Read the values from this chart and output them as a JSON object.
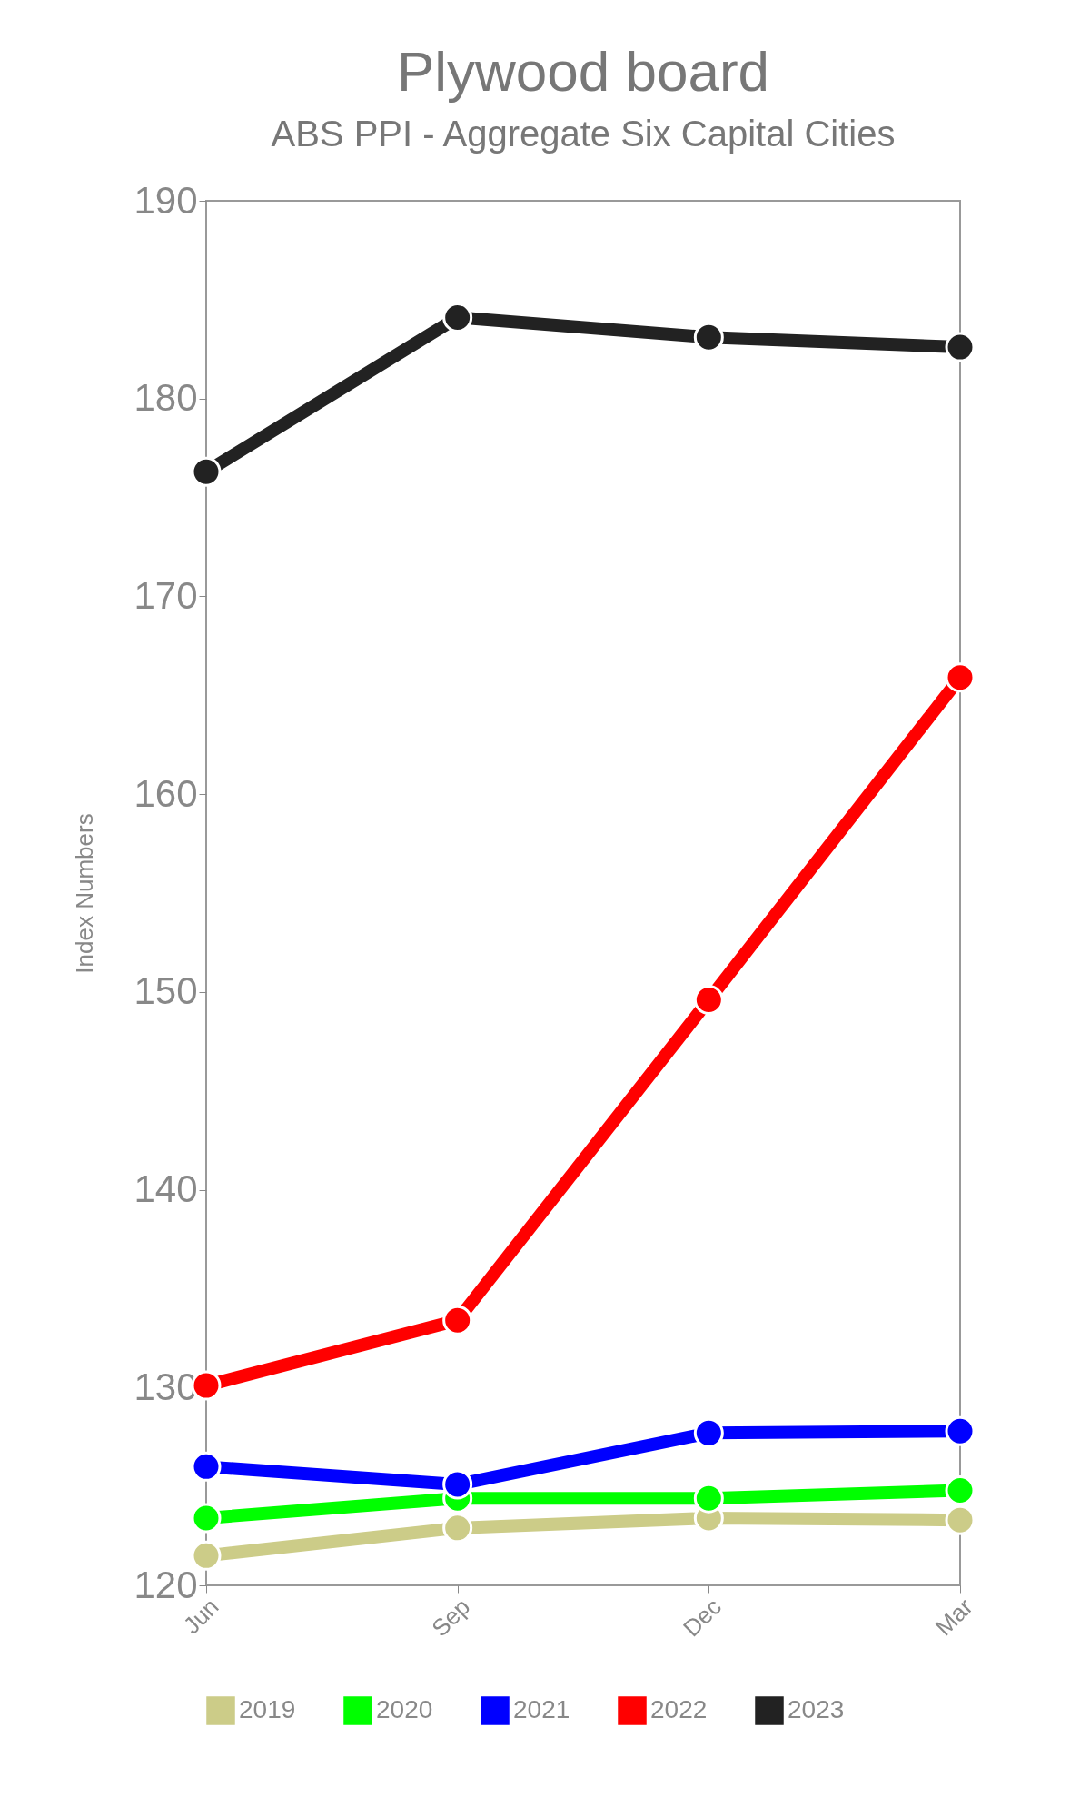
{
  "chart_data": {
    "type": "line",
    "title": "Plywood board",
    "subtitle": "ABS PPI - Aggregate Six Capital Cities",
    "ylabel": "Index Numbers",
    "categories": [
      "Jun",
      "Sep",
      "Dec",
      "Mar"
    ],
    "series": [
      {
        "name": "2019",
        "color": "#cccc88",
        "values": [
          121.5,
          122.9,
          123.4,
          123.3
        ]
      },
      {
        "name": "2020",
        "color": "#00ff00",
        "values": [
          123.4,
          124.4,
          124.4,
          124.8
        ]
      },
      {
        "name": "2021",
        "color": "#0000ff",
        "values": [
          126.0,
          125.1,
          127.7,
          127.8
        ]
      },
      {
        "name": "2022",
        "color": "#ff0000",
        "values": [
          130.1,
          133.4,
          149.6,
          165.9
        ]
      },
      {
        "name": "2023",
        "color": "#222222",
        "values": [
          176.3,
          184.1,
          183.1,
          182.6
        ]
      }
    ],
    "ylim": [
      120,
      190
    ],
    "yticks": [
      120,
      130,
      140,
      150,
      160,
      170,
      180,
      190
    ],
    "grid": false,
    "legend": "bottom",
    "marker": "circle",
    "line_style": "solid"
  }
}
